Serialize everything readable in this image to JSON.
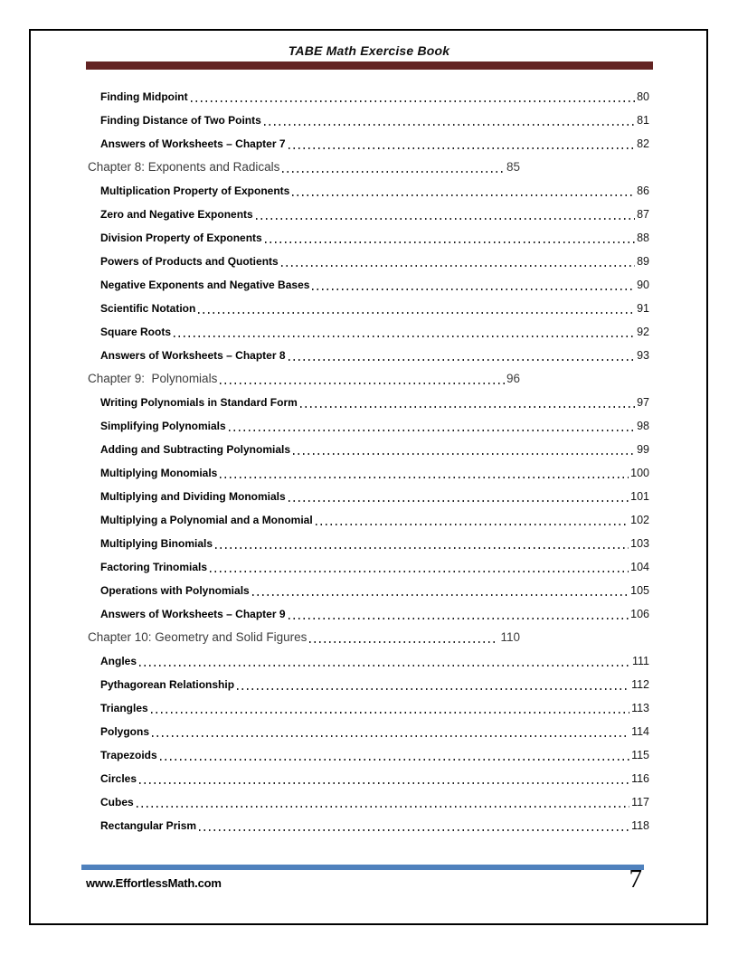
{
  "header": {
    "title": "TABE Math Exercise Book"
  },
  "footer": {
    "site": "www.EffortlessMath.com",
    "page_number": "7"
  },
  "colors": {
    "header_bar": "#632423",
    "footer_bar": "#4f81bd",
    "chapter_text": "#3d3d3d",
    "entry_text": "#000000"
  },
  "toc": [
    {
      "type": "sub",
      "title": "Finding Midpoint",
      "page": "80"
    },
    {
      "type": "sub",
      "title": "Finding Distance of Two Points",
      "page": "81"
    },
    {
      "type": "sub",
      "title": "Answers of Worksheets – Chapter 7",
      "page": "82"
    },
    {
      "type": "chapter",
      "title": "Chapter 8: Exponents and Radicals",
      "page": "85"
    },
    {
      "type": "sub",
      "title": "Multiplication Property of Exponents",
      "page": "86"
    },
    {
      "type": "sub",
      "title": "Zero and Negative Exponents",
      "page": "87"
    },
    {
      "type": "sub",
      "title": "Division Property of Exponents",
      "page": "88"
    },
    {
      "type": "sub",
      "title": "Powers of Products and Quotients",
      "page": "89"
    },
    {
      "type": "sub",
      "title": "Negative Exponents and Negative Bases",
      "page": "90"
    },
    {
      "type": "sub",
      "title": "Scientific Notation",
      "page": "91"
    },
    {
      "type": "sub",
      "title": "Square Roots",
      "page": "92"
    },
    {
      "type": "sub",
      "title": "Answers of Worksheets – Chapter 8",
      "page": "93"
    },
    {
      "type": "chapter",
      "title": "Chapter 9:  Polynomials",
      "page": "96"
    },
    {
      "type": "sub",
      "title": "Writing Polynomials in Standard Form",
      "page": "97"
    },
    {
      "type": "sub",
      "title": "Simplifying Polynomials",
      "page": "98"
    },
    {
      "type": "sub",
      "title": "Adding and Subtracting Polynomials",
      "page": "99"
    },
    {
      "type": "sub",
      "title": "Multiplying Monomials",
      "page": "100"
    },
    {
      "type": "sub",
      "title": "Multiplying and Dividing Monomials",
      "page": "101"
    },
    {
      "type": "sub",
      "title": "Multiplying a Polynomial and a Monomial",
      "page": "102"
    },
    {
      "type": "sub",
      "title": "Multiplying Binomials",
      "page": "103"
    },
    {
      "type": "sub",
      "title": "Factoring Trinomials",
      "page": "104"
    },
    {
      "type": "sub",
      "title": "Operations with Polynomials",
      "page": "105"
    },
    {
      "type": "sub",
      "title": "Answers of Worksheets – Chapter 9",
      "page": "106"
    },
    {
      "type": "chapter",
      "title": "Chapter 10: Geometry and Solid Figures",
      "page": "110"
    },
    {
      "type": "sub",
      "title": "Angles",
      "page": "111"
    },
    {
      "type": "sub",
      "title": "Pythagorean Relationship",
      "page": "112"
    },
    {
      "type": "sub",
      "title": "Triangles",
      "page": "113"
    },
    {
      "type": "sub",
      "title": "Polygons",
      "page": "114"
    },
    {
      "type": "sub",
      "title": "Trapezoids",
      "page": "115"
    },
    {
      "type": "sub",
      "title": "Circles",
      "page": "116"
    },
    {
      "type": "sub",
      "title": "Cubes",
      "page": "117"
    },
    {
      "type": "sub",
      "title": "Rectangular Prism",
      "page": "118"
    }
  ]
}
